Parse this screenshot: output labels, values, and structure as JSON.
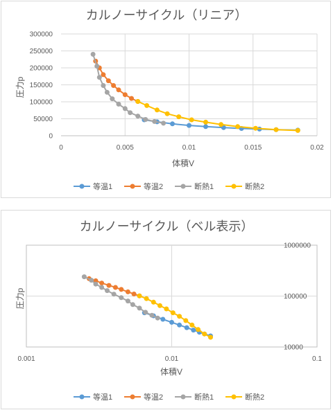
{
  "charts": [
    {
      "title": "カルノーサイクル（リニア）",
      "xlabel": "体積V",
      "ylabel": "圧力p",
      "x_ticks": [
        "0",
        "0.005",
        "0.01",
        "0.015",
        "0.02"
      ],
      "y_ticks": [
        "0",
        "50000",
        "100000",
        "150000",
        "200000",
        "250000",
        "300000"
      ]
    },
    {
      "title": "カルノーサイクル（ベル表示）",
      "xlabel": "体積V",
      "ylabel": "圧力p",
      "x_ticks": [
        "0.001",
        "0.01",
        "0.1"
      ],
      "y_ticks": [
        "10000",
        "100000",
        "1000000"
      ]
    }
  ],
  "legend": [
    "等温1",
    "等温2",
    "断熱1",
    "断熱2"
  ],
  "colors": [
    "#5b9bd5",
    "#ed7d31",
    "#a5a5a5",
    "#ffc000"
  ],
  "chart_data": [
    {
      "type": "scatter",
      "title": "カルノーサイクル（リニア）",
      "xlabel": "体積V",
      "ylabel": "圧力p",
      "xlim": [
        0,
        0.02
      ],
      "ylim": [
        0,
        300000
      ],
      "x_scale": "linear",
      "y_scale": "linear",
      "legend_position": "bottom",
      "series": [
        {
          "name": "等温1",
          "x": [
            0.0065,
            0.0075,
            0.0087,
            0.01,
            0.0113,
            0.0127,
            0.0141,
            0.0155,
            0.0168,
            0.0185
          ],
          "y": [
            47000,
            41000,
            35000,
            30500,
            27000,
            24000,
            21500,
            19500,
            18000,
            16500
          ]
        },
        {
          "name": "等温2",
          "x": [
            0.0027,
            0.003,
            0.0033,
            0.0037,
            0.0041,
            0.0045,
            0.005,
            0.0055,
            0.006
          ],
          "y": [
            220000,
            200000,
            180000,
            162000,
            148000,
            135000,
            121000,
            110000,
            101000
          ]
        },
        {
          "name": "断熱1",
          "x": [
            0.0025,
            0.0028,
            0.003,
            0.0033,
            0.0036,
            0.004,
            0.0045,
            0.005,
            0.0054,
            0.006,
            0.0066,
            0.0073,
            0.008
          ],
          "y": [
            240000,
            205000,
            172000,
            148000,
            128000,
            109000,
            93000,
            80000,
            68000,
            58000,
            48000,
            42000,
            37000
          ]
        },
        {
          "name": "断熱2",
          "x": [
            0.006,
            0.0067,
            0.0075,
            0.0083,
            0.0092,
            0.0102,
            0.0113,
            0.0125,
            0.0138,
            0.0152,
            0.0168,
            0.0185
          ],
          "y": [
            101000,
            89000,
            76000,
            65000,
            56000,
            47000,
            40000,
            33000,
            27000,
            22000,
            18000,
            15500
          ]
        }
      ]
    },
    {
      "type": "scatter",
      "title": "カルノーサイクル（ベル表示）",
      "xlabel": "体積V",
      "ylabel": "圧力p",
      "xlim": [
        0.001,
        0.1
      ],
      "ylim": [
        10000,
        1000000
      ],
      "x_scale": "log",
      "y_scale": "log",
      "legend_position": "bottom",
      "series": [
        {
          "name": "等温1",
          "x": [
            0.0065,
            0.0075,
            0.0087,
            0.01,
            0.0113,
            0.0127,
            0.0141,
            0.0155,
            0.0168,
            0.0185
          ],
          "y": [
            47000,
            41000,
            35000,
            30500,
            27000,
            24000,
            21500,
            19500,
            18000,
            16500
          ]
        },
        {
          "name": "等温2",
          "x": [
            0.0027,
            0.003,
            0.0033,
            0.0037,
            0.0041,
            0.0045,
            0.005,
            0.0055,
            0.006
          ],
          "y": [
            220000,
            200000,
            180000,
            162000,
            148000,
            135000,
            121000,
            110000,
            101000
          ]
        },
        {
          "name": "断熱1",
          "x": [
            0.0025,
            0.0028,
            0.003,
            0.0033,
            0.0036,
            0.004,
            0.0045,
            0.005,
            0.0054,
            0.006,
            0.0066,
            0.0073,
            0.008
          ],
          "y": [
            240000,
            205000,
            172000,
            148000,
            128000,
            109000,
            93000,
            80000,
            68000,
            58000,
            48000,
            42000,
            37000
          ]
        },
        {
          "name": "断熱2",
          "x": [
            0.006,
            0.0067,
            0.0075,
            0.0083,
            0.0092,
            0.0102,
            0.0113,
            0.0125,
            0.0138,
            0.0152,
            0.0168,
            0.0185
          ],
          "y": [
            101000,
            89000,
            76000,
            65000,
            56000,
            47000,
            40000,
            33000,
            27000,
            22000,
            18000,
            15500
          ]
        }
      ]
    }
  ]
}
